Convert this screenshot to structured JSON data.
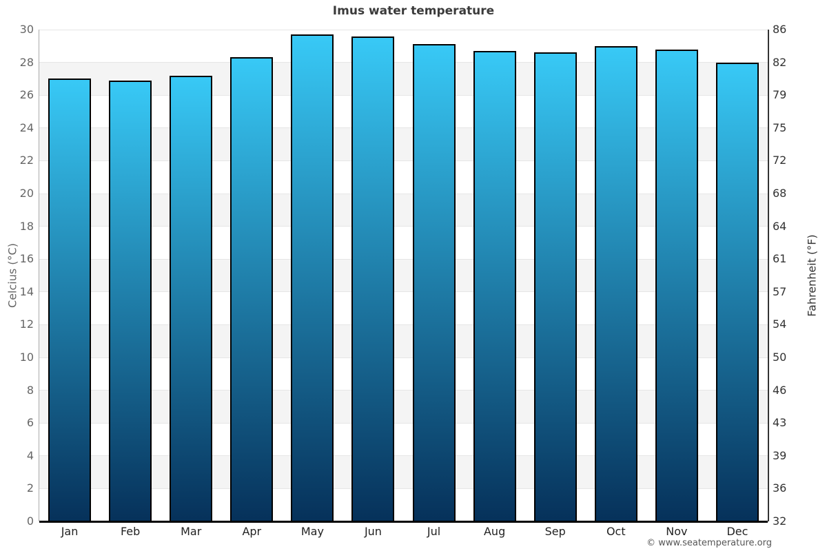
{
  "title": "Imus water temperature",
  "footer": {
    "copyright": "© www.seatemperature.org"
  },
  "axes": {
    "left_label": "Celcius (°C)",
    "right_label": "Fahrenheit (°F)",
    "celsius_ticks": [
      0,
      2,
      4,
      6,
      8,
      10,
      12,
      14,
      16,
      18,
      20,
      22,
      24,
      26,
      28,
      30
    ],
    "fahrenheit_tick_labels": [
      "32",
      "36",
      "39",
      "43",
      "46",
      "50",
      "54",
      "57",
      "61",
      "64",
      "68",
      "72",
      "75",
      "79",
      "82",
      "86"
    ]
  },
  "chart_data": {
    "type": "bar",
    "title": "Imus water temperature",
    "categories": [
      "Jan",
      "Feb",
      "Mar",
      "Apr",
      "May",
      "Jun",
      "Jul",
      "Aug",
      "Sep",
      "Oct",
      "Nov",
      "Dec"
    ],
    "values": [
      27.0,
      26.9,
      27.2,
      28.3,
      29.7,
      29.6,
      29.1,
      28.7,
      28.6,
      29.0,
      28.8,
      28.0
    ],
    "unit": "°C",
    "xlabel": "",
    "ylabel": "Celcius (°C)",
    "y2label": "Fahrenheit (°F)",
    "ylim": [
      0,
      30
    ],
    "ytick_step": 2,
    "legend": "none",
    "grid": "alternating horizontal bands every 2°C with light gridlines"
  },
  "colors": {
    "background": "#ffffff",
    "bar_gradient_top": "#38c9f6",
    "bar_gradient_bottom": "#06315a",
    "bar_border": "#000000",
    "band_alt": "#f4f4f4",
    "gridline": "#e6e6e6",
    "title_text": "#3b3b3b",
    "left_axis_text": "#666666",
    "right_axis_text": "#333333",
    "month_text": "#222222",
    "left_axis_line": "#aaaaaa",
    "right_axis_line": "#333333",
    "baseline": "#000000",
    "footer_text": "#555555"
  }
}
